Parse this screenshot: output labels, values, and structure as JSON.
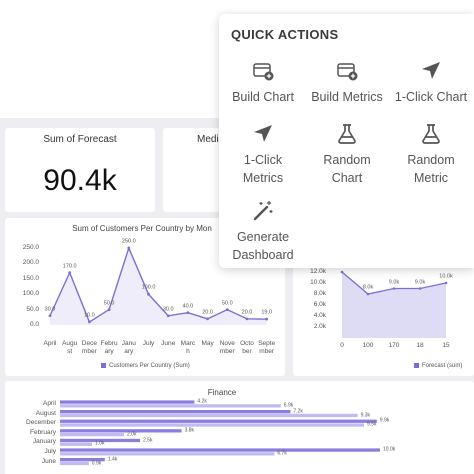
{
  "quick_actions": {
    "title": "QUICK ACTIONS",
    "items": [
      "Build Chart",
      "Build Metrics",
      "1-Click Chart",
      "1-Click Metrics",
      "Random Chart",
      "Random Metric",
      "Generate Dashboard"
    ]
  },
  "cards": [
    {
      "title": "Sum of Forecast",
      "value": "90.4k"
    },
    {
      "title": "Medi"
    }
  ],
  "line_chart": {
    "type": "line",
    "title": "Sum of Customers Per Country by Mon",
    "categories": [
      "April",
      "August",
      "December",
      "February",
      "January",
      "July",
      "June",
      "March",
      "May",
      "November",
      "October",
      "September"
    ],
    "values": [
      30,
      170,
      10,
      50,
      250,
      100,
      30,
      40,
      20,
      50,
      20,
      19
    ],
    "value_labels": [
      "30.0",
      "170.0",
      "10.0",
      "50.0",
      "250.0",
      "100.0",
      "30.0",
      "40.0",
      "20.0",
      "50.0",
      "20.0",
      "19.0"
    ],
    "ylim": [
      0,
      250
    ],
    "yticks": [
      {
        "value": 0,
        "label": "0.0"
      },
      {
        "value": 50,
        "label": "50.0"
      },
      {
        "value": 100,
        "label": "100.0"
      },
      {
        "value": 150,
        "label": "150.0"
      },
      {
        "value": 200,
        "label": "200.0"
      },
      {
        "value": 250,
        "label": "250.0"
      }
    ],
    "legend": "Customers Per Country (Sum)",
    "color": "#7b6fd6"
  },
  "area_chart": {
    "type": "area",
    "categories": [
      "0",
      "100",
      "170",
      "18",
      "15"
    ],
    "values": [
      12000,
      8000,
      9000,
      9000,
      10000
    ],
    "value_labels": [
      "12.0k",
      "8.0k",
      "9.0k",
      "9.0k",
      "10.0k"
    ],
    "ylim": [
      0,
      12000
    ],
    "yticks": [
      {
        "value": 2000,
        "label": "2.0k"
      },
      {
        "value": 4000,
        "label": "4.0k"
      },
      {
        "value": 6000,
        "label": "6.0k"
      },
      {
        "value": 8000,
        "label": "8.0k"
      },
      {
        "value": 10000,
        "label": "10.0k"
      },
      {
        "value": 12000,
        "label": "12.0k"
      }
    ],
    "legend": "Forecast (sum)",
    "color": "#7b6fd6"
  },
  "finance_chart": {
    "type": "hbar",
    "title": "Finance",
    "categories": [
      "April",
      "August",
      "December",
      "February",
      "January",
      "July",
      "June"
    ],
    "xlim": [
      0,
      10000
    ],
    "series": [
      {
        "color": "#8a7fdf",
        "values": [
          4200,
          7200,
          9900,
          3800,
          2500,
          10000,
          1400
        ],
        "value_labels": [
          "4.2k",
          "7.2k",
          "9.9k",
          "3.8k",
          "2.5k",
          "10.0k",
          "1.4k"
        ]
      },
      {
        "color": "#c2bbf2",
        "values": [
          6900,
          9300,
          9500,
          2000,
          1000,
          6700,
          900
        ],
        "value_labels": [
          "6.9k",
          "9.3k",
          "9.5k",
          "2.0k",
          "1.0k",
          "6.7k",
          "0.9k"
        ]
      }
    ]
  }
}
